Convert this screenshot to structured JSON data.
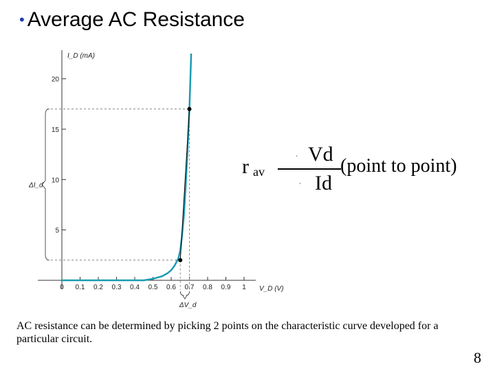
{
  "slide": {
    "title": "Average AC Resistance",
    "title_bullet": "•",
    "description": "AC resistance can be determined by picking 2 points on the characteristic curve developed for a particular circuit.",
    "page_number": "8"
  },
  "formula": {
    "lhs_main": "r",
    "lhs_sub": "av",
    "numerator": "Vd",
    "denominator": "Id",
    "tail": "(point to point)",
    "stray_marks": [
      "`",
      "`"
    ]
  },
  "chart_data": {
    "type": "line",
    "title": "",
    "xlabel": "V_D (V)",
    "ylabel": "I_D (mA)",
    "x_ticks": [
      0,
      0.1,
      0.2,
      0.3,
      0.4,
      0.5,
      0.6,
      0.7,
      0.8,
      0.9,
      1
    ],
    "x_tick_labels": [
      "0",
      "0.1",
      "0.2",
      "0.3",
      "0.4",
      "0.5",
      "0.6",
      "0.7",
      "0.8",
      "0.9",
      "1"
    ],
    "y_ticks": [
      5,
      10,
      15,
      20
    ],
    "y_tick_labels": [
      "5",
      "10",
      "15",
      "20"
    ],
    "xlim": [
      0,
      1
    ],
    "ylim": [
      0,
      22.5
    ],
    "series": [
      {
        "color": "#1a9bb2",
        "x": [
          0,
          0.45,
          0.5,
          0.55,
          0.58,
          0.6,
          0.62,
          0.64,
          0.65,
          0.66,
          0.67,
          0.68,
          0.69,
          0.7,
          0.71
        ],
        "y": [
          0,
          0.0,
          0.15,
          0.4,
          0.7,
          1.0,
          1.5,
          2.2,
          3.0,
          4.5,
          6.5,
          9.5,
          13.0,
          17.0,
          22.5
        ]
      }
    ],
    "points": [
      {
        "x": 0.65,
        "y": 2.0
      },
      {
        "x": 0.7,
        "y": 17.0
      }
    ],
    "annotations": {
      "delta_i": "ΔI_d",
      "delta_v": "ΔV_d"
    },
    "colors": {
      "curve": "#1a9bb2",
      "chord": "#000000",
      "dashed": "#888888"
    }
  }
}
